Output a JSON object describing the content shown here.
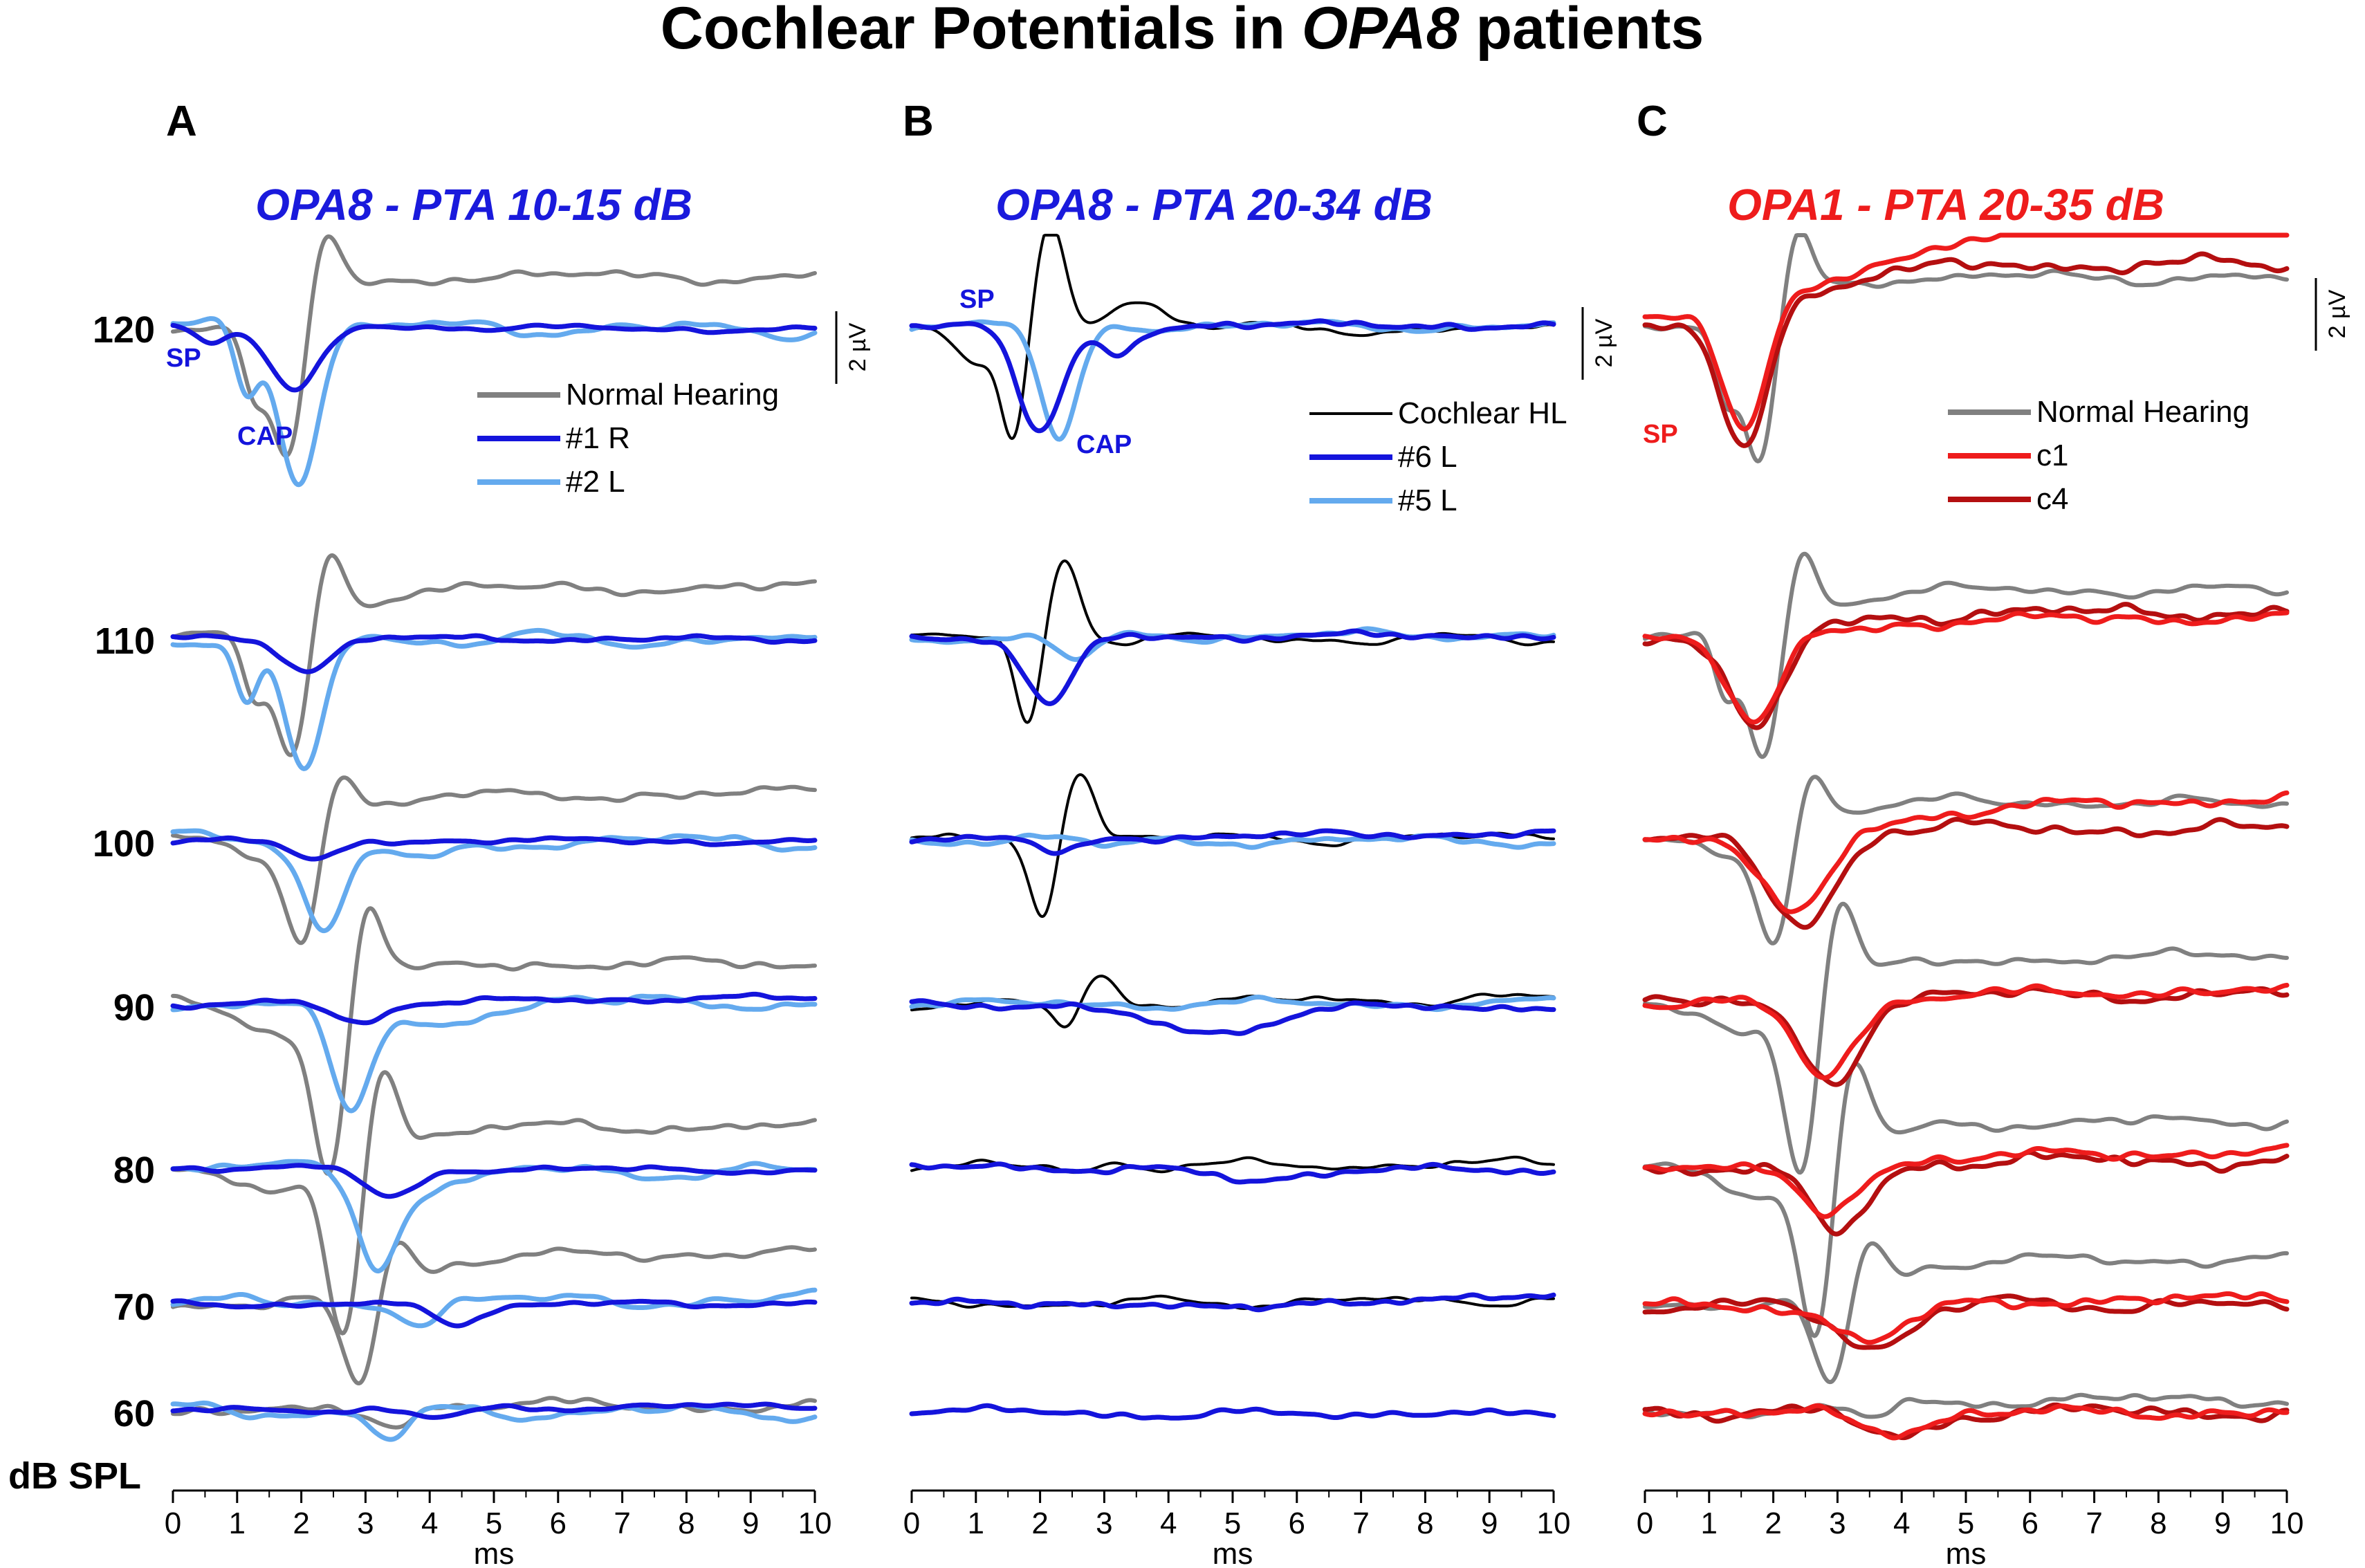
{
  "figure": {
    "title_prefix": "Cochlear Potentials in ",
    "title_italic": "OPA8",
    "title_suffix": " patients",
    "y_unit": "dB SPL",
    "scale_bar": "2 µV"
  },
  "colors": {
    "normal": "#808080",
    "cochlear": "#000000",
    "dark_blue": "#1414dc",
    "light_blue": "#64aaee",
    "red": "#ee1c1c",
    "dark_red": "#b40f10",
    "blue_title": "#1a1adc",
    "red_title": "#ee1c1c"
  },
  "chart_data": [
    {
      "type": "line",
      "panel": "A",
      "title": "OPA8 - PTA 10-15 dB",
      "xlabel": "ms",
      "xlim": [
        0,
        10
      ],
      "xticks": [
        "0",
        "1",
        "2",
        "3",
        "4",
        "5",
        "6",
        "7",
        "8",
        "9",
        "10"
      ],
      "levels": [
        "120",
        "110",
        "100",
        "90",
        "80",
        "70",
        "60"
      ],
      "legend": [
        "Normal Hearing",
        "#1 R",
        "#2 L"
      ],
      "annotations": [
        "SP",
        "CAP"
      ],
      "series": [
        {
          "name": "Normal Hearing",
          "color_key": "normal",
          "kind": "normal"
        },
        {
          "name": "#1 R",
          "color_key": "dark_blue",
          "kind": "patient_dark_a"
        },
        {
          "name": "#2 L",
          "color_key": "light_blue",
          "kind": "patient_light_a"
        }
      ]
    },
    {
      "type": "line",
      "panel": "B",
      "title": "OPA8 - PTA 20-34 dB",
      "xlabel": "ms",
      "xlim": [
        0,
        10
      ],
      "xticks": [
        "0",
        "1",
        "2",
        "3",
        "4",
        "5",
        "6",
        "7",
        "8",
        "9",
        "10"
      ],
      "levels": [
        "120",
        "110",
        "100",
        "90",
        "80",
        "70",
        "60"
      ],
      "legend": [
        "Cochlear HL",
        "#6 L",
        "#5 L"
      ],
      "annotations": [
        "SP",
        "CAP"
      ],
      "series": [
        {
          "name": "Cochlear HL",
          "color_key": "cochlear",
          "kind": "cochlear"
        },
        {
          "name": "#6 L",
          "color_key": "dark_blue",
          "kind": "patient_dark_b"
        },
        {
          "name": "#5 L",
          "color_key": "light_blue",
          "kind": "patient_light_b"
        }
      ]
    },
    {
      "type": "line",
      "panel": "C",
      "title": "OPA1 - PTA 20-35 dB",
      "xlabel": "ms",
      "xlim": [
        0,
        10
      ],
      "xticks": [
        "0",
        "1",
        "2",
        "3",
        "4",
        "5",
        "6",
        "7",
        "8",
        "9",
        "10"
      ],
      "levels": [
        "120",
        "110",
        "100",
        "90",
        "80",
        "70",
        "60"
      ],
      "legend": [
        "Normal Hearing",
        "c1",
        "c4"
      ],
      "annotations": [
        "SP"
      ],
      "series": [
        {
          "name": "Normal Hearing",
          "color_key": "normal",
          "kind": "normal"
        },
        {
          "name": "c1",
          "color_key": "red",
          "kind": "patient_red_c1"
        },
        {
          "name": "c4",
          "color_key": "dark_red",
          "kind": "patient_red_c4"
        }
      ]
    }
  ]
}
